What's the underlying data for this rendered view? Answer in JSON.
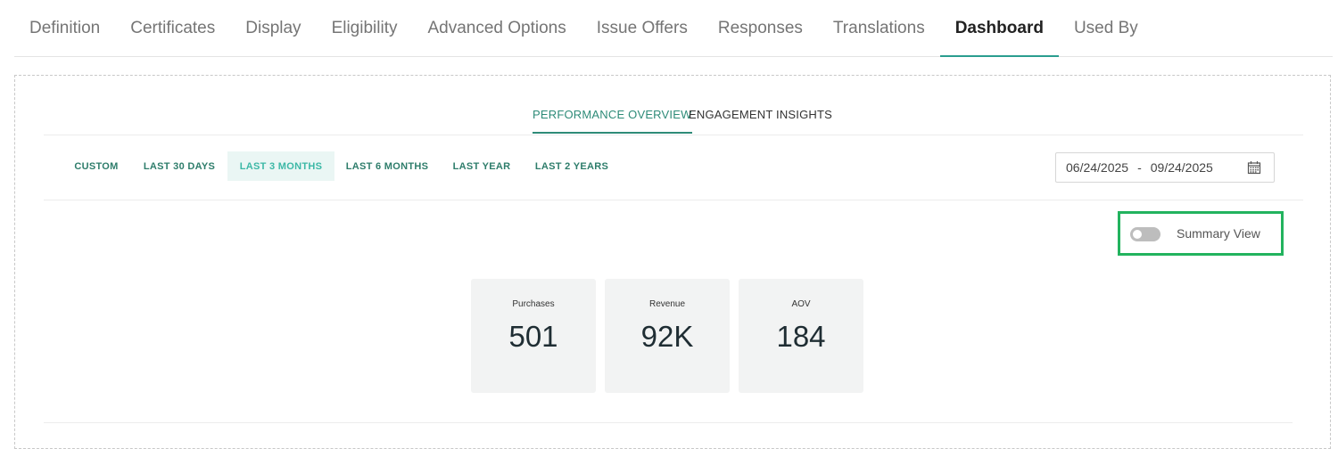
{
  "top_tabs": [
    {
      "label": "Definition"
    },
    {
      "label": "Certificates"
    },
    {
      "label": "Display"
    },
    {
      "label": "Eligibility"
    },
    {
      "label": "Advanced Options"
    },
    {
      "label": "Issue Offers"
    },
    {
      "label": "Responses"
    },
    {
      "label": "Translations"
    },
    {
      "label": "Dashboard",
      "active": true
    },
    {
      "label": "Used By"
    }
  ],
  "sub_tabs": {
    "performance": "PERFORMANCE OVERVIEW",
    "engagement": "ENGAGEMENT INSIGHTS"
  },
  "ranges": {
    "custom": "CUSTOM",
    "last_30_days": "LAST 30 DAYS",
    "last_3_months": "LAST 3 MONTHS",
    "last_6_months": "LAST 6 MONTHS",
    "last_year": "LAST YEAR",
    "last_2_years": "LAST 2 YEARS",
    "selected": "LAST 3 MONTHS"
  },
  "date_range": {
    "start": "06/24/2025",
    "separator": "-",
    "end": "09/24/2025",
    "icon": "calendar-icon"
  },
  "summary_view": {
    "label": "Summary View",
    "enabled": false
  },
  "metrics": {
    "purchases": {
      "label": "Purchases",
      "value": "501"
    },
    "revenue": {
      "label": "Revenue",
      "value": "92K"
    },
    "aov": {
      "label": "AOV",
      "value": "184"
    }
  },
  "colors": {
    "accent": "#2e8b78",
    "highlight_border": "#22b35e",
    "selected_range_bg": "#eaf6f4"
  }
}
